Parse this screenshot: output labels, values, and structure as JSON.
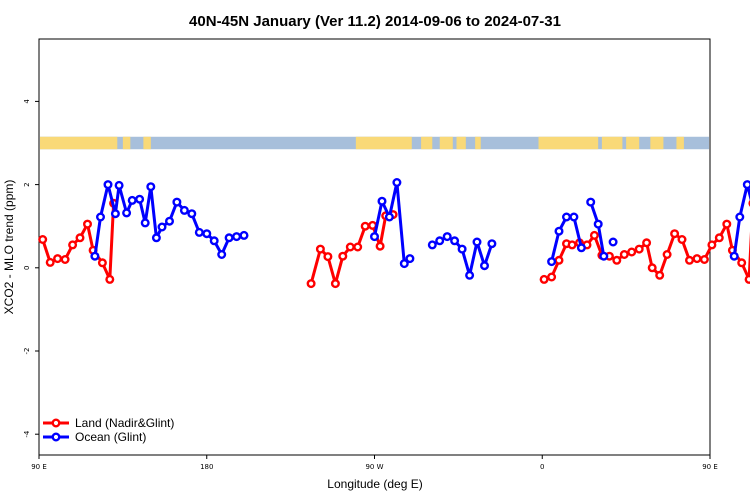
{
  "chart_data": {
    "type": "line",
    "title": "40N-45N January (Ver 11.2)   2014-09-06 to 2024-07-31",
    "xlabel": "Longitude (deg E)",
    "ylabel": "XCO2 - MLO trend (ppm)",
    "xlim": [
      90,
      450
    ],
    "ylim": [
      -4.5,
      5.5
    ],
    "xticks": [
      {
        "value": 90,
        "label": "90 E"
      },
      {
        "value": 180,
        "label": "180"
      },
      {
        "value": 270,
        "label": "90 W"
      },
      {
        "value": 360,
        "label": "0"
      },
      {
        "value": 450,
        "label": "90 E"
      },
      {
        "value": 540,
        "label": "180"
      }
    ],
    "yticks": [
      {
        "value": 4,
        "label": "4"
      },
      {
        "value": 2,
        "label": "2"
      },
      {
        "value": 0,
        "label": "0"
      },
      {
        "value": -2,
        "label": "-2"
      },
      {
        "value": -4,
        "label": "-4"
      }
    ],
    "legend_position": "bottom-left",
    "land_ocean_strip": {
      "y_range": [
        2.85,
        3.15
      ],
      "land_color": "#f9d978",
      "ocean_color": "#a7bfdb",
      "land_segments": [
        [
          90,
          132
        ],
        [
          135,
          139
        ],
        [
          146,
          150
        ],
        [
          260,
          290
        ],
        [
          295,
          301
        ],
        [
          305,
          312
        ],
        [
          314,
          319
        ],
        [
          324,
          327
        ],
        [
          358,
          390
        ],
        [
          392,
          403
        ],
        [
          405,
          412
        ],
        [
          418,
          425
        ],
        [
          432,
          436
        ]
      ]
    },
    "series": [
      {
        "name": "Land (Nadir&Glint)",
        "color": "#ff0000",
        "segments": [
          [
            [
              92,
              0.68
            ],
            [
              96,
              0.13
            ],
            [
              100,
              0.22
            ],
            [
              104,
              0.2
            ],
            [
              108,
              0.55
            ],
            [
              112,
              0.72
            ],
            [
              116,
              1.05
            ],
            [
              119,
              0.42
            ],
            [
              124,
              0.12
            ],
            [
              128,
              -0.28
            ],
            [
              130,
              1.55
            ]
          ],
          [
            [
              236,
              -0.38
            ],
            [
              241,
              0.45
            ],
            [
              245,
              0.27
            ],
            [
              249,
              -0.38
            ],
            [
              253,
              0.28
            ],
            [
              257,
              0.5
            ],
            [
              261,
              0.5
            ],
            [
              265,
              1.0
            ],
            [
              269,
              1.02
            ],
            [
              273,
              0.52
            ],
            [
              276,
              1.25
            ],
            [
              280,
              1.28
            ]
          ],
          [
            [
              361,
              -0.28
            ],
            [
              365,
              -0.22
            ],
            [
              369,
              0.18
            ],
            [
              373,
              0.58
            ],
            [
              376,
              0.55
            ],
            [
              380,
              0.6
            ],
            [
              384,
              0.55
            ],
            [
              388,
              0.78
            ],
            [
              392,
              0.3
            ],
            [
              396,
              0.28
            ],
            [
              400,
              0.18
            ],
            [
              404,
              0.32
            ],
            [
              408,
              0.38
            ],
            [
              412,
              0.45
            ],
            [
              416,
              0.6
            ],
            [
              419,
              0.0
            ],
            [
              423,
              -0.18
            ],
            [
              427,
              0.32
            ],
            [
              431,
              0.82
            ],
            [
              435,
              0.68
            ],
            [
              439,
              0.18
            ],
            [
              443,
              0.22
            ],
            [
              447,
              0.2
            ],
            [
              451,
              0.55
            ],
            [
              455,
              0.72
            ],
            [
              459,
              1.05
            ],
            [
              462,
              0.42
            ],
            [
              467,
              0.12
            ],
            [
              471,
              -0.28
            ],
            [
              473,
              1.55
            ]
          ]
        ]
      },
      {
        "name": "Ocean (Glint)",
        "color": "#0000ff",
        "segments": [
          [
            [
              120,
              0.28
            ],
            [
              123,
              1.22
            ],
            [
              127,
              2.0
            ],
            [
              131,
              1.3
            ],
            [
              133,
              1.98
            ],
            [
              137,
              1.32
            ],
            [
              140,
              1.62
            ],
            [
              144,
              1.65
            ],
            [
              147,
              1.08
            ],
            [
              150,
              1.95
            ],
            [
              153,
              0.72
            ],
            [
              156,
              0.98
            ],
            [
              160,
              1.12
            ],
            [
              164,
              1.58
            ],
            [
              168,
              1.38
            ],
            [
              172,
              1.3
            ],
            [
              176,
              0.85
            ],
            [
              180,
              0.82
            ],
            [
              184,
              0.65
            ],
            [
              188,
              0.32
            ],
            [
              192,
              0.72
            ],
            [
              196,
              0.75
            ],
            [
              200,
              0.78
            ]
          ],
          [
            [
              270,
              0.75
            ],
            [
              274,
              1.6
            ],
            [
              278,
              1.22
            ],
            [
              282,
              2.05
            ],
            [
              286,
              0.1
            ],
            [
              289,
              0.22
            ]
          ],
          [
            [
              301,
              0.55
            ],
            [
              305,
              0.65
            ],
            [
              309,
              0.75
            ],
            [
              313,
              0.65
            ],
            [
              317,
              0.45
            ],
            [
              321,
              -0.18
            ],
            [
              325,
              0.62
            ],
            [
              329,
              0.05
            ],
            [
              333,
              0.58
            ]
          ],
          [
            [
              365,
              0.15
            ],
            [
              369,
              0.88
            ],
            [
              373,
              1.22
            ],
            [
              377,
              1.22
            ],
            [
              381,
              0.48
            ]
          ],
          [
            [
              386,
              1.58
            ],
            [
              390,
              1.05
            ],
            [
              393,
              0.28
            ]
          ],
          [
            [
              398,
              0.62
            ]
          ],
          [
            [
              463,
              0.28
            ],
            [
              466,
              1.22
            ],
            [
              470,
              2.0
            ],
            [
              474,
              1.3
            ],
            [
              476,
              1.98
            ],
            [
              480,
              1.32
            ],
            [
              483,
              1.62
            ],
            [
              487,
              1.65
            ],
            [
              491,
              1.08
            ],
            [
              495,
              1.95
            ],
            [
              498,
              0.72
            ]
          ]
        ]
      }
    ]
  }
}
